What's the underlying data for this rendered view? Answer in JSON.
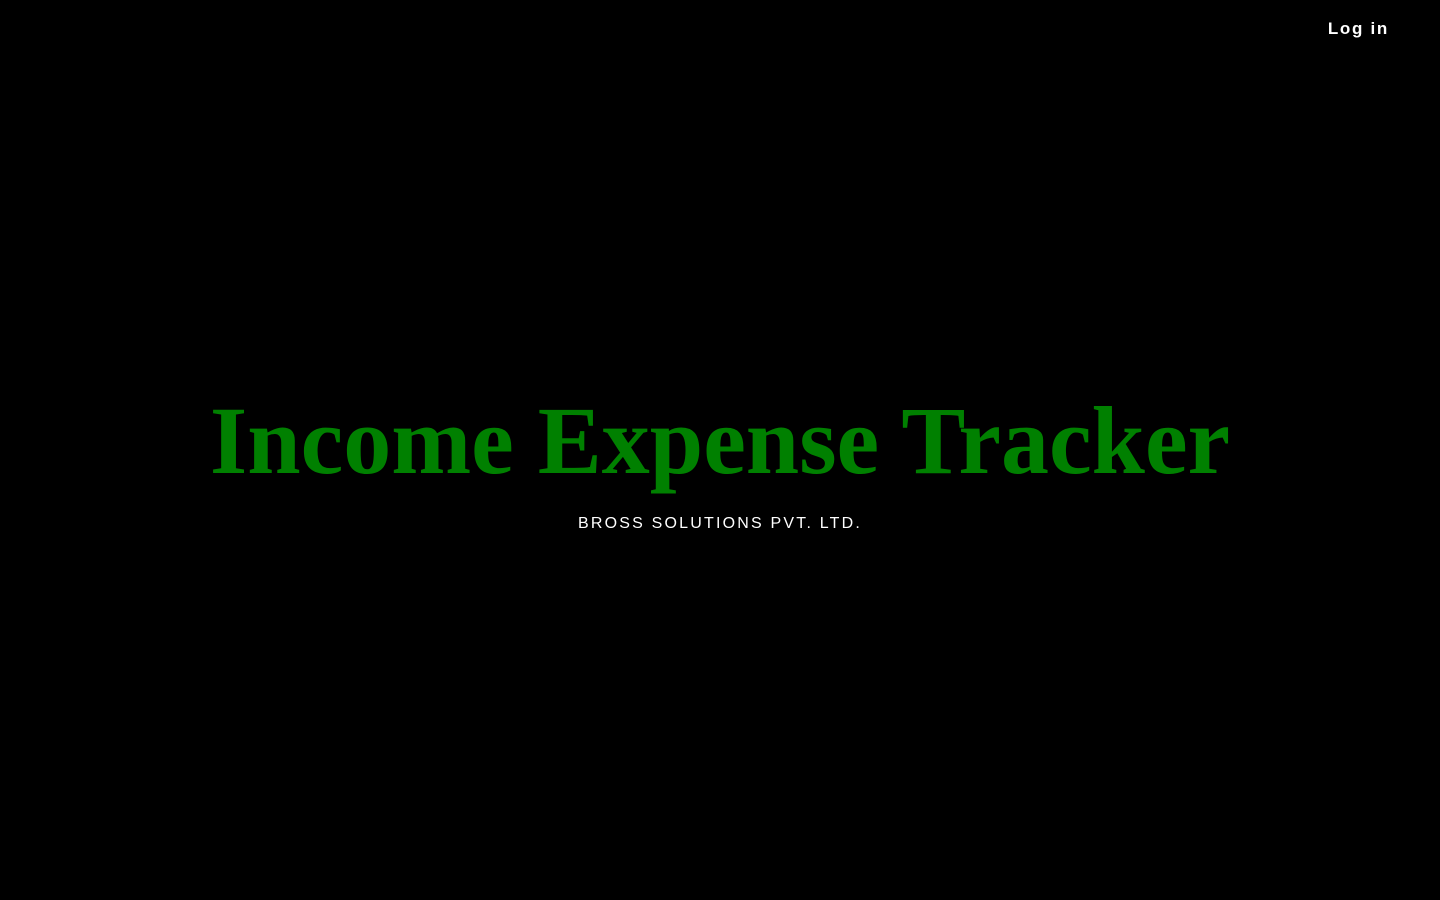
{
  "header": {
    "login_label": "Log in"
  },
  "hero": {
    "title": "Income Expense Tracker",
    "subtitle": "BROSS SOLUTIONS PVT. LTD."
  },
  "colors": {
    "background": "#000000",
    "title": "#008000",
    "text": "#ffffff"
  }
}
